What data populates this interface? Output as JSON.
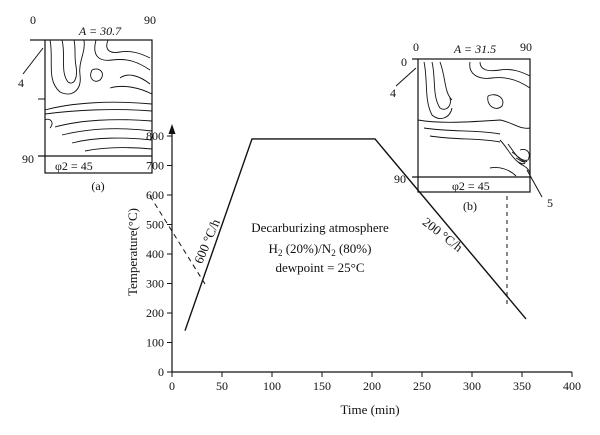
{
  "chart_data": {
    "type": "line",
    "xlabel": "Time (min)",
    "ylabel": "Temperature(°C)",
    "xlim": [
      0,
      400
    ],
    "ylim": [
      0,
      800
    ],
    "x_ticks": [
      "0",
      "50",
      "100",
      "150",
      "200",
      "250",
      "300",
      "350",
      "400"
    ],
    "y_ticks": [
      "0",
      "100",
      "200",
      "300",
      "400",
      "500",
      "600",
      "700",
      "800"
    ],
    "series": [
      {
        "x": [
          13,
          80,
          203,
          354
        ],
        "y": [
          140,
          790,
          790,
          180
        ]
      }
    ],
    "annotations": {
      "heating_rate": "600 °C/h",
      "cooling_rate": "200 °C/h",
      "atmosphere_line1": "Decarburizing atmosphere",
      "atmosphere_h2": "H",
      "atmosphere_h2_sub": "2",
      "atmosphere_h2_tail": " (20%)/N",
      "atmosphere_n2_sub": "2",
      "atmosphere_n2_tail": " (80%)",
      "atmosphere_line3": "dewpoint = 25°C"
    },
    "insets": [
      {
        "id": "a",
        "panel_label": "(a)",
        "intensity": "A = 30.7",
        "corner_tl": "0",
        "corner_tr": "90",
        "corner_bl": "90",
        "section": "φ2 = 45",
        "callout": "4",
        "time_min": 35,
        "temp_c": 330
      },
      {
        "id": "b",
        "panel_label": "(b)",
        "intensity": "A = 31.5",
        "corner_tl": "0",
        "corner_tr": "90",
        "corner_bl": "90",
        "section": "φ2 = 45",
        "callout_left": "4",
        "callout_right": "5",
        "time_min": 340,
        "temp_c": 180
      }
    ]
  }
}
